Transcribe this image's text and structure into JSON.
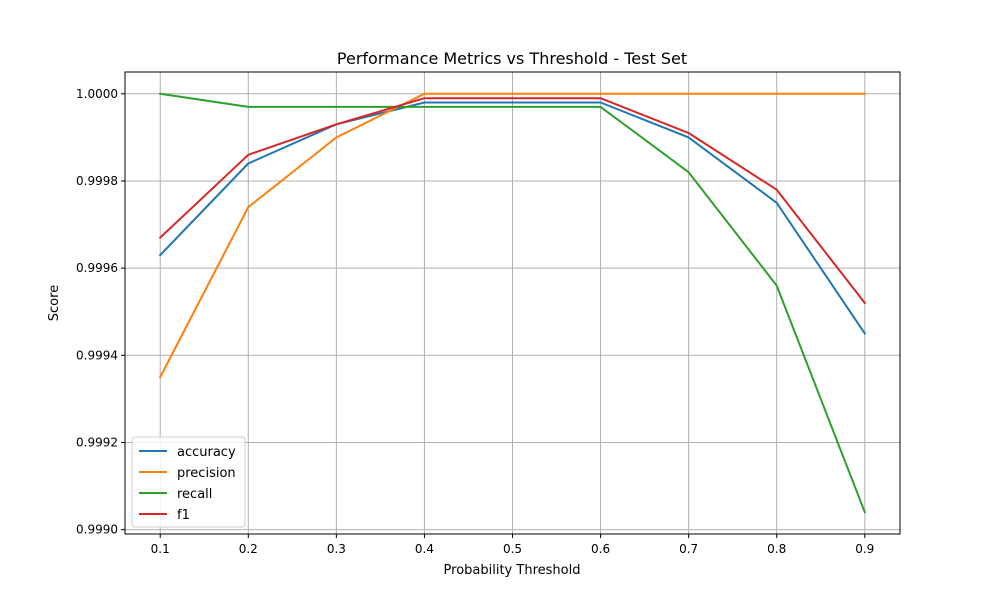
{
  "chart_data": {
    "type": "line",
    "title": "Performance Metrics vs Threshold - Test Set",
    "xlabel": "Probability Threshold",
    "ylabel": "Score",
    "x": [
      0.1,
      0.2,
      0.3,
      0.4,
      0.5,
      0.6,
      0.7,
      0.8,
      0.9
    ],
    "xlim": [
      0.06,
      0.94
    ],
    "ylim": [
      0.99899,
      1.00005
    ],
    "xticks": [
      "0.1",
      "0.2",
      "0.3",
      "0.4",
      "0.5",
      "0.6",
      "0.7",
      "0.8",
      "0.9"
    ],
    "yticks": [
      "0.9990",
      "0.9992",
      "0.9994",
      "0.9996",
      "0.9998",
      "1.0000"
    ],
    "grid": true,
    "legend_position": "lower-left",
    "series": [
      {
        "name": "accuracy",
        "color": "#1f77b4",
        "values": [
          0.99963,
          0.99984,
          0.99993,
          0.99998,
          0.99998,
          0.99998,
          0.9999,
          0.99975,
          0.99945
        ]
      },
      {
        "name": "precision",
        "color": "#ff7f0e",
        "values": [
          0.99935,
          0.99974,
          0.9999,
          1.0,
          1.0,
          1.0,
          1.0,
          1.0,
          1.0
        ]
      },
      {
        "name": "recall",
        "color": "#2ca02c",
        "values": [
          1.0,
          0.99997,
          0.99997,
          0.99997,
          0.99997,
          0.99997,
          0.99982,
          0.99956,
          0.99904
        ]
      },
      {
        "name": "f1",
        "color": "#d62728",
        "values": [
          0.99967,
          0.99986,
          0.99993,
          0.99999,
          0.99999,
          0.99999,
          0.99991,
          0.99978,
          0.99952
        ]
      }
    ]
  }
}
